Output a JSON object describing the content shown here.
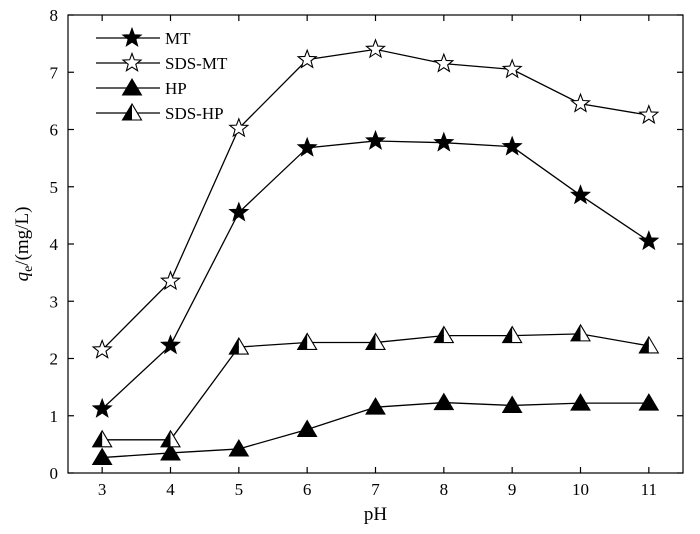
{
  "chart_data": {
    "type": "line",
    "xlabel": "pH",
    "ylabel_main": "q",
    "ylabel_sub": "e",
    "ylabel_rest": "/(mg/L)",
    "xlim": [
      2.5,
      11.5
    ],
    "ylim": [
      0,
      8
    ],
    "x_ticks": [
      3,
      4,
      5,
      6,
      7,
      8,
      9,
      10,
      11
    ],
    "y_ticks": [
      0,
      1,
      2,
      3,
      4,
      5,
      6,
      7,
      8
    ],
    "legend_position": "top-left",
    "grid": false,
    "series": [
      {
        "name": "MT",
        "marker": "star-filled",
        "x": [
          3,
          4,
          5,
          6,
          7,
          8,
          9,
          10,
          11
        ],
        "values": [
          1.12,
          2.23,
          4.55,
          5.68,
          5.8,
          5.77,
          5.7,
          4.85,
          4.05
        ]
      },
      {
        "name": "SDS-MT",
        "marker": "star-open",
        "x": [
          3,
          4,
          5,
          6,
          7,
          8,
          9,
          10,
          11
        ],
        "values": [
          2.15,
          3.35,
          6.02,
          7.22,
          7.4,
          7.15,
          7.05,
          6.45,
          6.25
        ]
      },
      {
        "name": "HP",
        "marker": "triangle-filled",
        "x": [
          3,
          4,
          5,
          6,
          7,
          8,
          9,
          10,
          11
        ],
        "values": [
          0.27,
          0.35,
          0.42,
          0.76,
          1.15,
          1.23,
          1.18,
          1.22,
          1.22
        ]
      },
      {
        "name": "SDS-HP",
        "marker": "triangle-half",
        "x": [
          3,
          4,
          5,
          6,
          7,
          8,
          9,
          10,
          11
        ],
        "values": [
          0.58,
          0.58,
          2.2,
          2.28,
          2.28,
          2.4,
          2.4,
          2.43,
          2.22
        ]
      }
    ]
  }
}
